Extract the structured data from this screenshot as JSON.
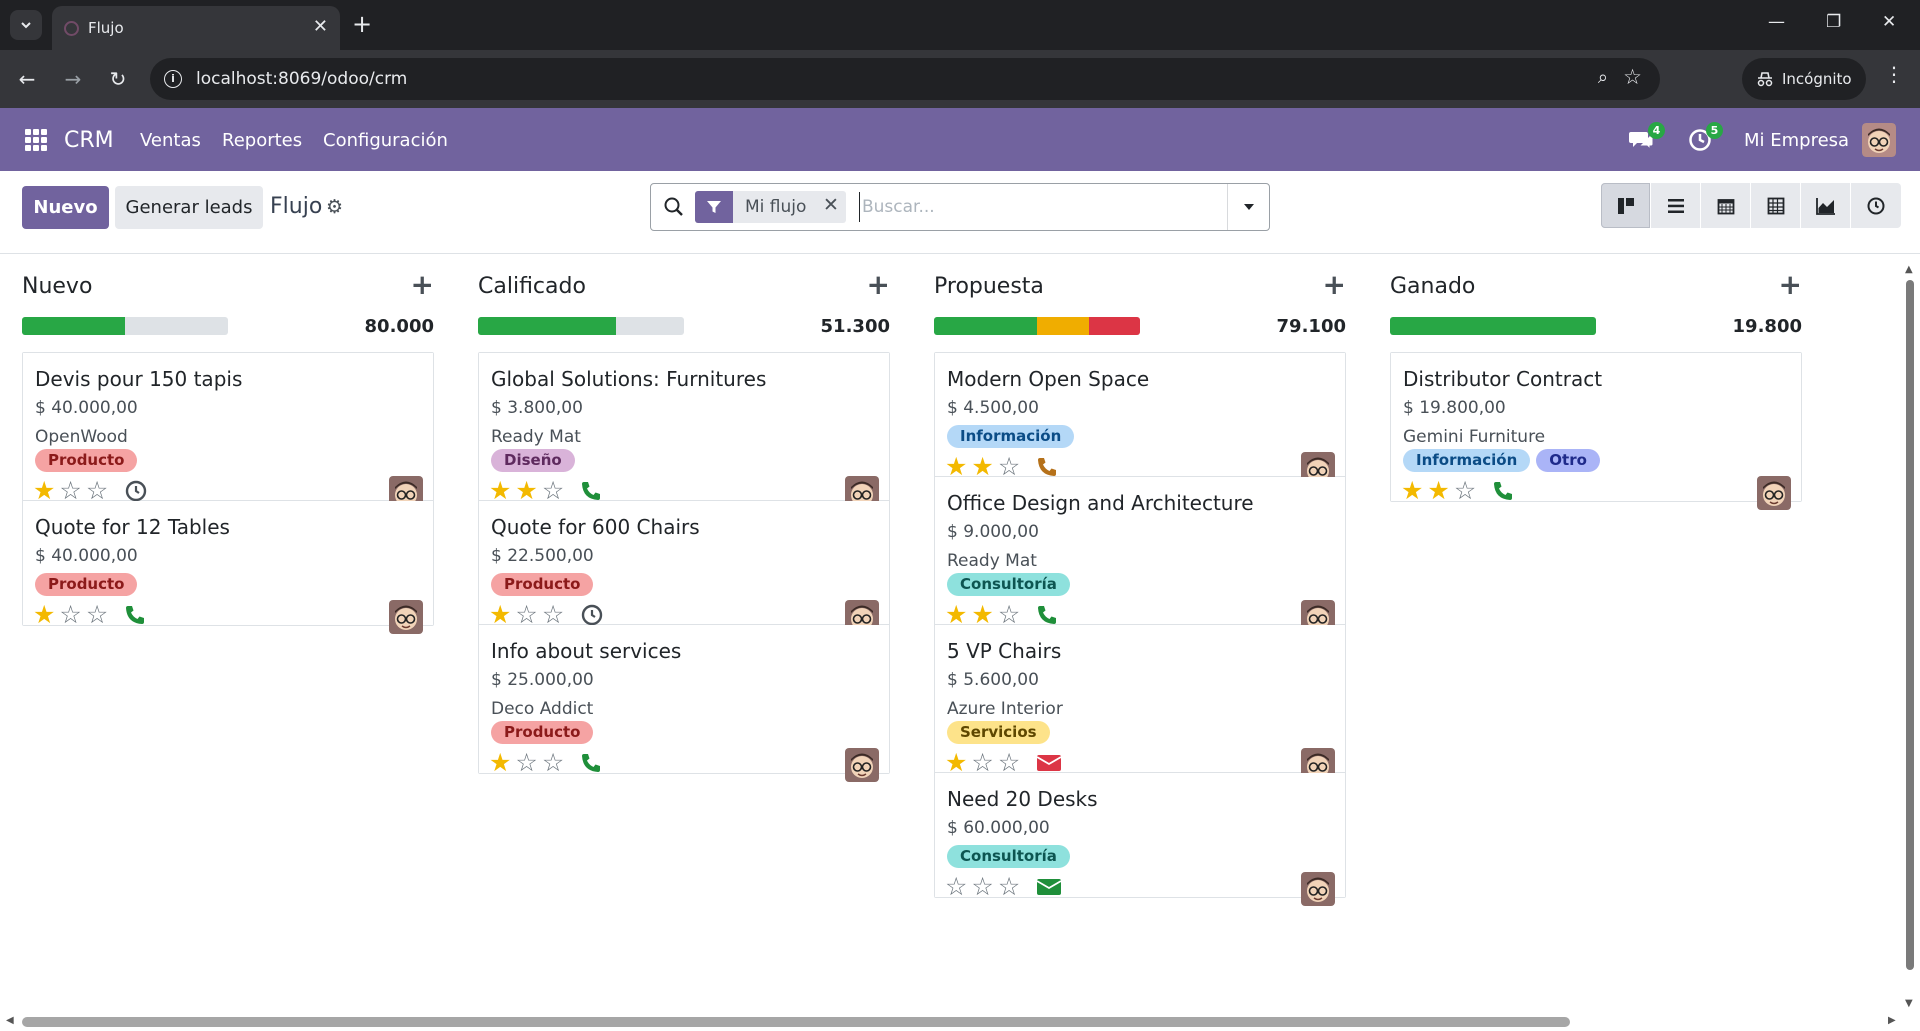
{
  "browser": {
    "tab_title": "Flujo",
    "url": "localhost:8069/odoo/crm",
    "incognito_label": "Incógnito"
  },
  "navbar": {
    "app_name": "CRM",
    "menu": [
      "Ventas",
      "Reportes",
      "Configuración"
    ],
    "messages_badge": "4",
    "activities_badge": "5",
    "company": "Mi Empresa"
  },
  "control_panel": {
    "new_label": "Nuevo",
    "generate_label": "Generar leads",
    "breadcrumb": "Flujo",
    "facet_label": "Mi flujo",
    "search_placeholder": "Buscar..."
  },
  "colors": {
    "primary": "#71639e",
    "progress_green": "#28a745",
    "progress_orange": "#f0ad00",
    "progress_red": "#dc3545",
    "tag_producto": "#f5a3a3",
    "tag_diseno": "#d4a4d4",
    "tag_informacion": "#a8d1f5",
    "tag_consultoria": "#8ee1dd",
    "tag_servicios": "#fde38a",
    "tag_otro": "#a9b2f7"
  },
  "columns": [
    {
      "name": "Nuevo",
      "total": "80.000",
      "progress": [
        {
          "color": "#28a745",
          "fraction": 0.5
        }
      ],
      "cards": [
        {
          "name": "Devis pour 150 tapis",
          "amount": "$ 40.000,00",
          "partner": "OpenWood",
          "tags": [
            {
              "label": "Producto",
              "color": "#f5a3a3",
              "text": "#8b1a1a"
            }
          ],
          "stars": 1,
          "activity": "clock-icon"
        },
        {
          "name": "Quote for 12 Tables",
          "amount": "$ 40.000,00",
          "partner": "",
          "tags": [
            {
              "label": "Producto",
              "color": "#f5a3a3",
              "text": "#8b1a1a"
            }
          ],
          "stars": 1,
          "activity": "phone-icon"
        }
      ]
    },
    {
      "name": "Calificado",
      "total": "51.300",
      "progress": [
        {
          "color": "#28a745",
          "fraction": 0.67
        }
      ],
      "cards": [
        {
          "name": "Global Solutions: Furnitures",
          "amount": "$ 3.800,00",
          "partner": "Ready Mat",
          "tags": [
            {
              "label": "Diseño",
              "color": "#d9b3d9",
              "text": "#5e2a5e"
            }
          ],
          "stars": 2,
          "activity": "phone-icon"
        },
        {
          "name": "Quote for 600 Chairs",
          "amount": "$ 22.500,00",
          "partner": "",
          "tags": [
            {
              "label": "Producto",
              "color": "#f5a3a3",
              "text": "#8b1a1a"
            }
          ],
          "stars": 1,
          "activity": "clock-icon"
        },
        {
          "name": "Info about services",
          "amount": "$ 25.000,00",
          "partner": "Deco Addict",
          "tags": [
            {
              "label": "Producto",
              "color": "#f5a3a3",
              "text": "#8b1a1a"
            }
          ],
          "stars": 1,
          "activity": "phone-icon"
        }
      ]
    },
    {
      "name": "Propuesta",
      "total": "79.100",
      "progress": [
        {
          "color": "#28a745",
          "fraction": 0.5
        },
        {
          "color": "#f0ad00",
          "fraction": 0.25
        },
        {
          "color": "#dc3545",
          "fraction": 0.25
        }
      ],
      "cards": [
        {
          "name": "Modern Open Space",
          "amount": "$ 4.500,00",
          "partner": "",
          "tags": [
            {
              "label": "Información",
              "color": "#b4d8f7",
              "text": "#0b4c86"
            }
          ],
          "stars": 2,
          "activity": "phone-warn-icon"
        },
        {
          "name": "Office Design and Architecture",
          "amount": "$ 9.000,00",
          "partner": "Ready Mat",
          "tags": [
            {
              "label": "Consultoría",
              "color": "#8ee1dd",
              "text": "#0d5551"
            }
          ],
          "stars": 2,
          "activity": "phone-icon"
        },
        {
          "name": "5 VP Chairs",
          "amount": "$ 5.600,00",
          "partner": "Azure Interior",
          "tags": [
            {
              "label": "Servicios",
              "color": "#fde38a",
              "text": "#5e4700"
            }
          ],
          "stars": 1,
          "activity": "email-red-icon"
        },
        {
          "name": "Need 20 Desks",
          "amount": "$ 60.000,00",
          "partner": "",
          "tags": [
            {
              "label": "Consultoría",
              "color": "#8ee1dd",
              "text": "#0d5551"
            }
          ],
          "stars": 0,
          "activity": "email-icon"
        }
      ]
    },
    {
      "name": "Ganado",
      "total": "19.800",
      "progress": [
        {
          "color": "#28a745",
          "fraction": 1.0
        }
      ],
      "cards": [
        {
          "name": "Distributor Contract",
          "amount": "$ 19.800,00",
          "partner": "Gemini Furniture",
          "tags": [
            {
              "label": "Información",
              "color": "#b4d8f7",
              "text": "#0b4c86"
            },
            {
              "label": "Otro",
              "color": "#aab4f7",
              "text": "#1f2a8a"
            }
          ],
          "stars": 2,
          "activity": "phone-icon"
        }
      ]
    }
  ]
}
